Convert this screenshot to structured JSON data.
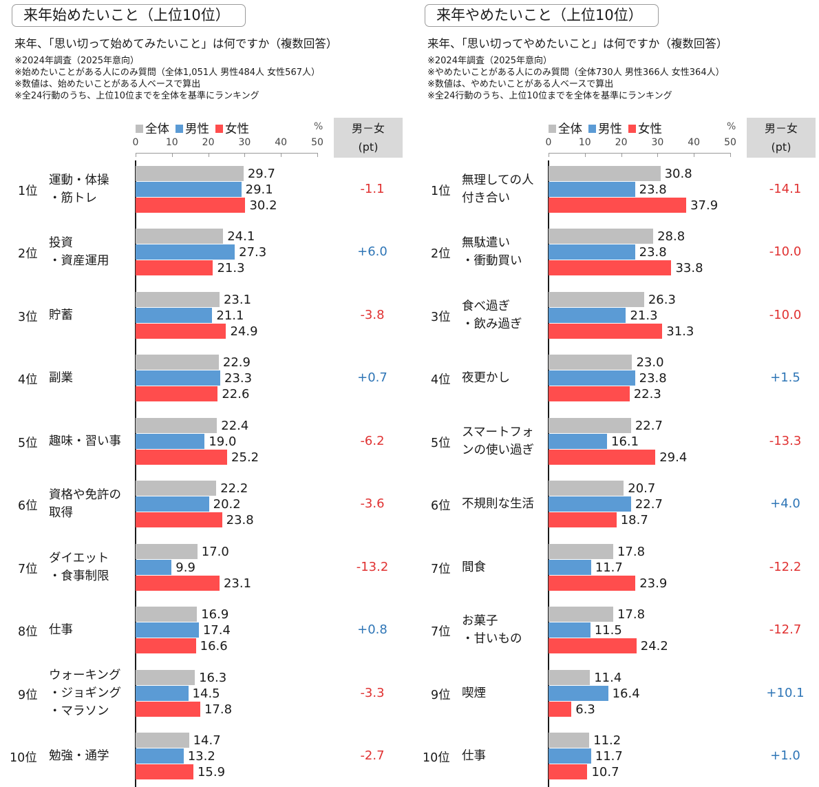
{
  "colors": {
    "all": "#bfbfbf",
    "male": "#5b9bd5",
    "female": "#ff4d4d",
    "neg": "#e03131",
    "pos": "#2e75b6"
  },
  "chart_data": [
    {
      "type": "bar",
      "orientation": "horizontal",
      "title": "来年始めたいこと（上位10位）",
      "question": "来年、「思い切って始めてみたいこと」は何ですか（複数回答）",
      "notes": [
        "※2024年調査（2025年意向）",
        "※始めたいことがある人にのみ質問（全体1,051人 男性484人 女性567人）",
        "※数値は、始めたいことがある人ベースで算出",
        "※全24行動のうち、上位10位までを全体を基準にランキング"
      ],
      "legend": [
        "全体",
        "男性",
        "女性"
      ],
      "unit": "%",
      "diff_header": [
        "男－女",
        "(pt)"
      ],
      "xlim": [
        0,
        50
      ],
      "ticks": [
        "0",
        "10",
        "20",
        "30",
        "40",
        "50"
      ],
      "ranks": [
        "1位",
        "2位",
        "3位",
        "4位",
        "5位",
        "6位",
        "7位",
        "8位",
        "9位",
        "10位"
      ],
      "categories": [
        "運動・体操\n・筋トレ",
        "投資\n・資産運用",
        "貯蓄",
        "副業",
        "趣味・習い事",
        "資格や免許の\n取得",
        "ダイエット\n・食事制限",
        "仕事",
        "ウォーキング\n・ジョギング\n・マラソン",
        "勉強・通学"
      ],
      "series": [
        {
          "name": "全体",
          "values": [
            29.7,
            24.1,
            23.1,
            22.9,
            22.4,
            22.2,
            17.0,
            16.9,
            16.3,
            14.7
          ],
          "labels": [
            "29.7",
            "24.1",
            "23.1",
            "22.9",
            "22.4",
            "22.2",
            "17.0",
            "16.9",
            "16.3",
            "14.7"
          ]
        },
        {
          "name": "男性",
          "values": [
            29.1,
            27.3,
            21.1,
            23.3,
            19.0,
            20.2,
            9.9,
            17.4,
            14.5,
            13.2
          ],
          "labels": [
            "29.1",
            "27.3",
            "21.1",
            "23.3",
            "19.0",
            "20.2",
            "9.9",
            "17.4",
            "14.5",
            "13.2"
          ]
        },
        {
          "name": "女性",
          "values": [
            30.2,
            21.3,
            24.9,
            22.6,
            25.2,
            23.8,
            23.1,
            16.6,
            17.8,
            15.9
          ],
          "labels": [
            "30.2",
            "21.3",
            "24.9",
            "22.6",
            "25.2",
            "23.8",
            "23.1",
            "16.6",
            "17.8",
            "15.9"
          ]
        }
      ],
      "diff": [
        "-1.1",
        "+6.0",
        "-3.8",
        "+0.7",
        "-6.2",
        "-3.6",
        "-13.2",
        "+0.8",
        "-3.3",
        "-2.7"
      ]
    },
    {
      "type": "bar",
      "orientation": "horizontal",
      "title": "来年やめたいこと（上位10位）",
      "question": "来年、「思い切ってやめたいこと」は何ですか（複数回答）",
      "notes": [
        "※2024年調査（2025年意向）",
        "※やめたいことがある人にのみ質問（全体730人 男性366人 女性364人）",
        "※数値は、やめたいことがある人ベースで算出",
        "※全24行動のうち、上位10位までを全体を基準にランキング"
      ],
      "legend": [
        "全体",
        "男性",
        "女性"
      ],
      "unit": "%",
      "diff_header": [
        "男－女",
        "(pt)"
      ],
      "xlim": [
        0,
        50
      ],
      "ticks": [
        "0",
        "10",
        "20",
        "30",
        "40",
        "50"
      ],
      "ranks": [
        "1位",
        "2位",
        "3位",
        "4位",
        "5位",
        "6位",
        "7位",
        "7位",
        "9位",
        "10位"
      ],
      "categories": [
        "無理しての人\n付き合い",
        "無駄遣い\n・衝動買い",
        "食べ過ぎ\n・飲み過ぎ",
        "夜更かし",
        "スマートフォ\nンの使い過ぎ",
        "不規則な生活",
        "間食",
        "お菓子\n・甘いもの",
        "喫煙",
        "仕事"
      ],
      "series": [
        {
          "name": "全体",
          "values": [
            30.8,
            28.8,
            26.3,
            23.0,
            22.7,
            20.7,
            17.8,
            17.8,
            11.4,
            11.2
          ],
          "labels": [
            "30.8",
            "28.8",
            "26.3",
            "23.0",
            "22.7",
            "20.7",
            "17.8",
            "17.8",
            "11.4",
            "11.2"
          ]
        },
        {
          "name": "男性",
          "values": [
            23.8,
            23.8,
            21.3,
            23.8,
            16.1,
            22.7,
            11.7,
            11.5,
            16.4,
            11.7
          ],
          "labels": [
            "23.8",
            "23.8",
            "21.3",
            "23.8",
            "16.1",
            "22.7",
            "11.7",
            "11.5",
            "16.4",
            "11.7"
          ]
        },
        {
          "name": "女性",
          "values": [
            37.9,
            33.8,
            31.3,
            22.3,
            29.4,
            18.7,
            23.9,
            24.2,
            6.3,
            10.7
          ],
          "labels": [
            "37.9",
            "33.8",
            "31.3",
            "22.3",
            "29.4",
            "18.7",
            "23.9",
            "24.2",
            "6.3",
            "10.7"
          ]
        }
      ],
      "diff": [
        "-14.1",
        "-10.0",
        "-10.0",
        "+1.5",
        "-13.3",
        "+4.0",
        "-12.2",
        "-12.7",
        "+10.1",
        "+1.0"
      ]
    }
  ]
}
